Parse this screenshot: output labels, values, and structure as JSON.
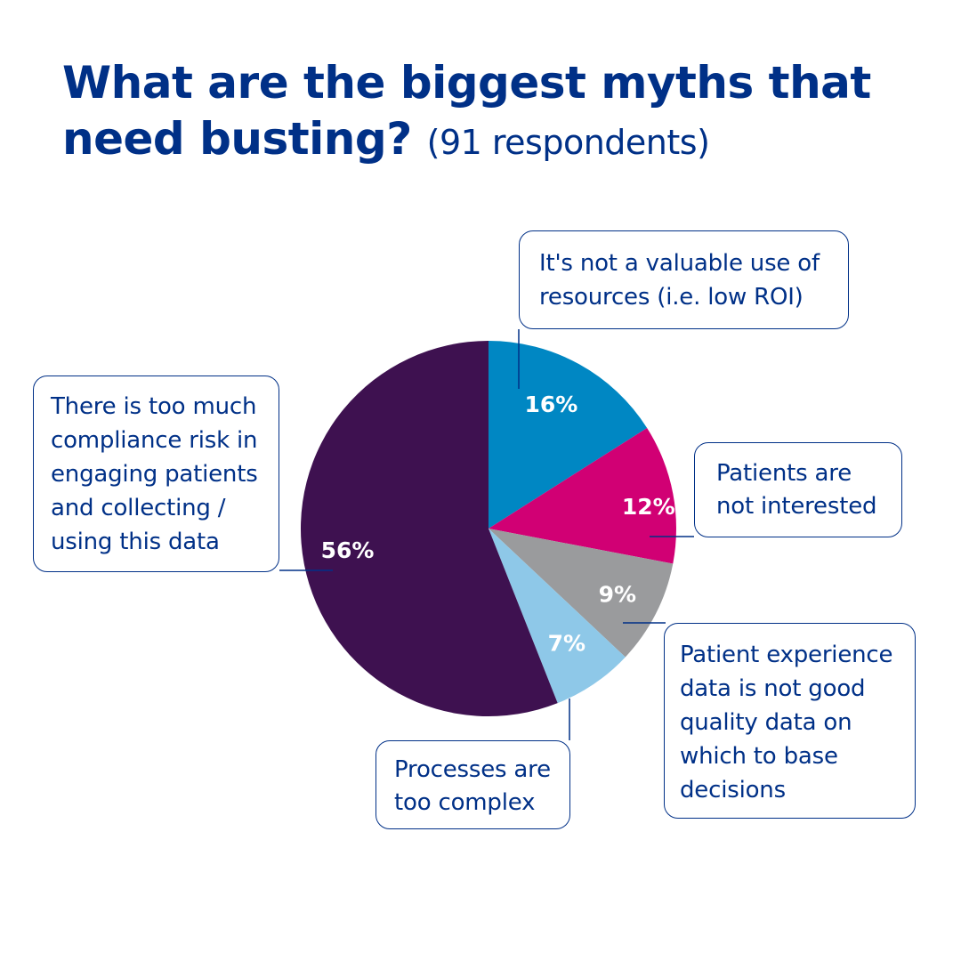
{
  "title": {
    "main_line1": "What are the biggest myths that",
    "main_line2": "need busting?",
    "respondents": "(91 respondents)"
  },
  "colors": {
    "title": "#003087",
    "callout_border": "#003087",
    "slice_label": "#ffffff"
  },
  "chart_data": {
    "type": "pie",
    "start": "top, clockwise",
    "slices": [
      {
        "label": "It's not a valuable use of resources (i.e. low ROI)",
        "value": 16,
        "display": "16%",
        "color": "#0087C3"
      },
      {
        "label": "Patients are not interested",
        "value": 12,
        "display": "12%",
        "color": "#D10074"
      },
      {
        "label": "Patient experience data is not good quality data on which to base decisions",
        "value": 9,
        "display": "9%",
        "color": "#9A9B9D"
      },
      {
        "label": "Processes are too complex",
        "value": 7,
        "display": "7%",
        "color": "#8EC8E8"
      },
      {
        "label": "There is too much compliance risk in engaging patients and collecting / using this data",
        "value": 56,
        "display": "56%",
        "color": "#3E1150"
      }
    ]
  },
  "callouts": {
    "roi": [
      "It's not a valuable use of",
      "resources (i.e. low ROI)"
    ],
    "interest": [
      "Patients are",
      "not interested"
    ],
    "quality": [
      "Patient experience",
      "data is not good",
      "quality data on",
      "which to base",
      "decisions"
    ],
    "complex": [
      "Processes are",
      "too complex"
    ],
    "compliance": [
      "There is too much",
      "compliance risk in",
      "engaging patients",
      "and collecting /",
      "using this data"
    ]
  }
}
